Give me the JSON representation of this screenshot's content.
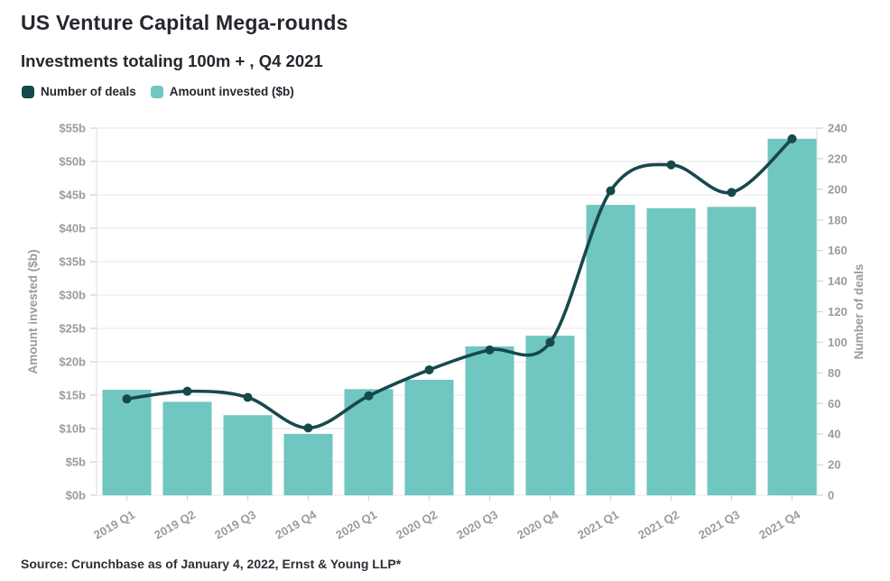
{
  "header": {
    "title": "US Venture Capital Mega-rounds",
    "subtitle": "Investments totaling 100m + , Q4 2021"
  },
  "legend": [
    {
      "label": "Number of deals",
      "color": "#17494c"
    },
    {
      "label": "Amount invested ($b)",
      "color": "#70c6c0"
    }
  ],
  "source": "Source: Crunchbase as of January 4, 2022, Ernst & Young LLP*",
  "colors": {
    "bar": "#70c6c0",
    "line": "#17494c",
    "grid": "#ececef",
    "axis_line": "#e3e3e7",
    "tick_dash": "#d6d6da",
    "tick_text": "#9b9ba1",
    "axis_title": "#9b9ba1"
  },
  "chart_data": {
    "type": "bar",
    "subtype": "combo-bar-line-dual-axis",
    "categories": [
      "2019 Q1",
      "2019 Q2",
      "2019 Q3",
      "2019 Q4",
      "2020 Q1",
      "2020 Q2",
      "2020 Q3",
      "2020 Q4",
      "2021 Q1",
      "2021 Q2",
      "2021 Q3",
      "2021 Q4"
    ],
    "series": [
      {
        "name": "Amount invested ($b)",
        "type": "bar",
        "axis": "left",
        "color": "#70c6c0",
        "values": [
          15.8,
          14.0,
          12.0,
          9.2,
          15.9,
          17.3,
          22.3,
          23.9,
          43.5,
          43.0,
          43.2,
          53.4
        ]
      },
      {
        "name": "Number of deals",
        "type": "line",
        "axis": "right",
        "color": "#17494c",
        "values": [
          63,
          68,
          64,
          44,
          65,
          82,
          95,
          100,
          199,
          216,
          198,
          233
        ]
      }
    ],
    "title": "US Venture Capital Mega-rounds",
    "subtitle": "Investments totaling 100m + , Q4 2021",
    "left_axis": {
      "label": "Amount invested ($b)",
      "min": 0,
      "max": 55,
      "step": 5,
      "ticks": [
        "$0b",
        "$5b",
        "$10b",
        "$15b",
        "$20b",
        "$25b",
        "$30b",
        "$35b",
        "$40b",
        "$45b",
        "$50b",
        "$55b"
      ]
    },
    "right_axis": {
      "label": "Number of deals",
      "min": 0,
      "max": 240,
      "step": 20,
      "ticks": [
        "0",
        "20",
        "40",
        "60",
        "80",
        "100",
        "120",
        "140",
        "160",
        "180",
        "200",
        "220",
        "240"
      ]
    },
    "grid": "horizontal",
    "legend_position": "top-left",
    "x_label_rotation": -30
  }
}
